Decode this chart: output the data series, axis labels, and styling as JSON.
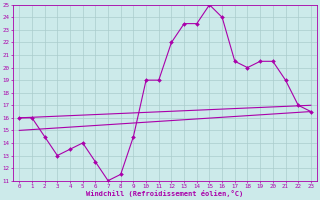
{
  "xlabel": "Windchill (Refroidissement éolien,°C)",
  "background_color": "#cceaea",
  "grid_color": "#aacccc",
  "line_color": "#aa00aa",
  "hours": [
    0,
    1,
    2,
    3,
    4,
    5,
    6,
    7,
    8,
    9,
    10,
    11,
    12,
    13,
    14,
    15,
    16,
    17,
    18,
    19,
    20,
    21,
    22,
    23
  ],
  "temp": [
    16.0,
    16.0,
    14.5,
    13.0,
    13.5,
    14.0,
    12.5,
    11.0,
    11.5,
    14.5,
    19.0,
    19.0,
    22.0,
    23.5,
    23.5,
    25.0,
    24.0,
    20.5,
    20.0,
    20.5,
    20.5,
    19.0,
    17.0,
    16.5
  ],
  "upper_line": [
    [
      0,
      16.0
    ],
    [
      23,
      17.0
    ]
  ],
  "lower_line": [
    [
      0,
      15.0
    ],
    [
      23,
      16.5
    ]
  ],
  "ylim": [
    11,
    25
  ],
  "xlim": [
    -0.5,
    23.5
  ],
  "yticks": [
    11,
    12,
    13,
    14,
    15,
    16,
    17,
    18,
    19,
    20,
    21,
    22,
    23,
    24,
    25
  ],
  "xticks": [
    0,
    1,
    2,
    3,
    4,
    5,
    6,
    7,
    8,
    9,
    10,
    11,
    12,
    13,
    14,
    15,
    16,
    17,
    18,
    19,
    20,
    21,
    22,
    23
  ]
}
